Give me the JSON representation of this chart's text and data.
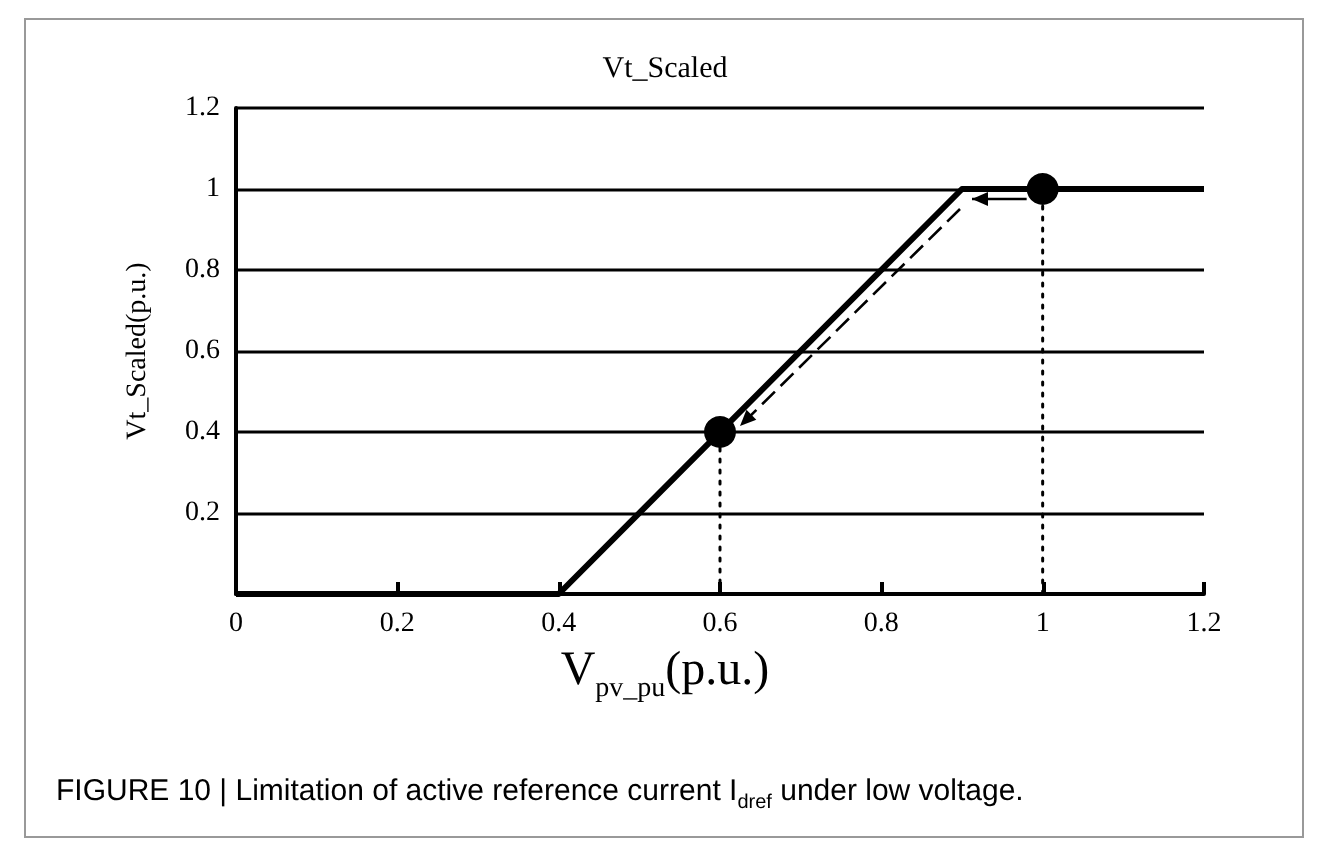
{
  "chart_data": {
    "type": "line",
    "title": "Vt_Scaled",
    "xlabel": "V$_{pv_pu}$(p.u.)",
    "ylabel": "Vt_Scaled(p.u.)",
    "annotations": [
      "FIGURE 10 | Limitation of active reference current I$_{dref}$ under low voltage."
    ],
    "xlim": [
      0,
      1.2
    ],
    "xticks": [
      0,
      0.2,
      0.4,
      0.6,
      0.8,
      1,
      1.2
    ],
    "ylim": [
      0,
      1.2
    ],
    "yticks": [
      {
        "value": 0,
        "label": null
      },
      0.2,
      0.4,
      0.6,
      0.8,
      1,
      1.2
    ],
    "grid": "y",
    "series": [
      {
        "color": "#000000",
        "x": [
          0,
          0.4,
          0.9,
          1.2
        ],
        "values": [
          0,
          0,
          1,
          1
        ],
        "marker": "none",
        "line_style": "solid"
      },
      {
        "type": "scatter",
        "color": "#000000",
        "x": [
          0.6,
          1
        ],
        "values": [
          0.4,
          1
        ],
        "marker": "circle"
      },
      {
        "color": "#000000",
        "x": [
          0.6,
          0.6
        ],
        "values": [
          0,
          0.4
        ],
        "marker": "none",
        "line_style": "dotted"
      },
      {
        "color": "#000000",
        "x": [
          1,
          1
        ],
        "values": [
          0,
          1
        ],
        "marker": "none",
        "line_style": "dotted"
      }
    ]
  }
}
